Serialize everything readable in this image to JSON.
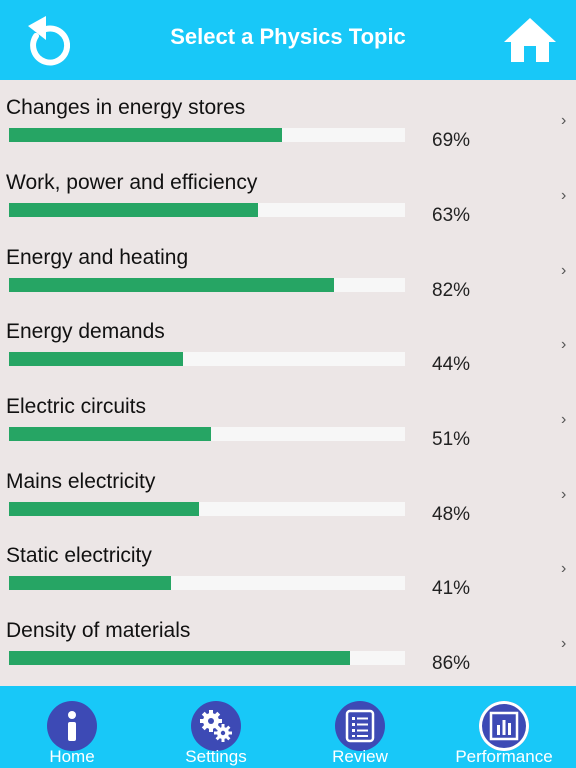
{
  "header": {
    "title": "Select a Physics Topic",
    "back_icon": "back-arrow-icon",
    "home_icon": "home-icon"
  },
  "topics": [
    {
      "label": "Changes in energy stores",
      "percent_text": "69%",
      "value": 69
    },
    {
      "label": "Work, power and efficiency",
      "percent_text": "63%",
      "value": 63
    },
    {
      "label": "Energy and heating",
      "percent_text": "82%",
      "value": 82
    },
    {
      "label": "Energy demands",
      "percent_text": "44%",
      "value": 44
    },
    {
      "label": "Electric circuits",
      "percent_text": "51%",
      "value": 51
    },
    {
      "label": "Mains electricity",
      "percent_text": "48%",
      "value": 48
    },
    {
      "label": "Static electricity",
      "percent_text": "41%",
      "value": 41
    },
    {
      "label": "Density of materials",
      "percent_text": "86%",
      "value": 86
    }
  ],
  "tabs": [
    {
      "label": "Home",
      "icon": "info-icon"
    },
    {
      "label": "Settings",
      "icon": "gears-icon"
    },
    {
      "label": "Review",
      "icon": "checklist-icon"
    },
    {
      "label": "Performance",
      "icon": "bar-chart-icon",
      "active": true
    }
  ],
  "colors": {
    "accent": "#18c8f8",
    "progress": "#26a564",
    "tab_circle": "#3d4ab5",
    "background": "#ece6e6"
  }
}
